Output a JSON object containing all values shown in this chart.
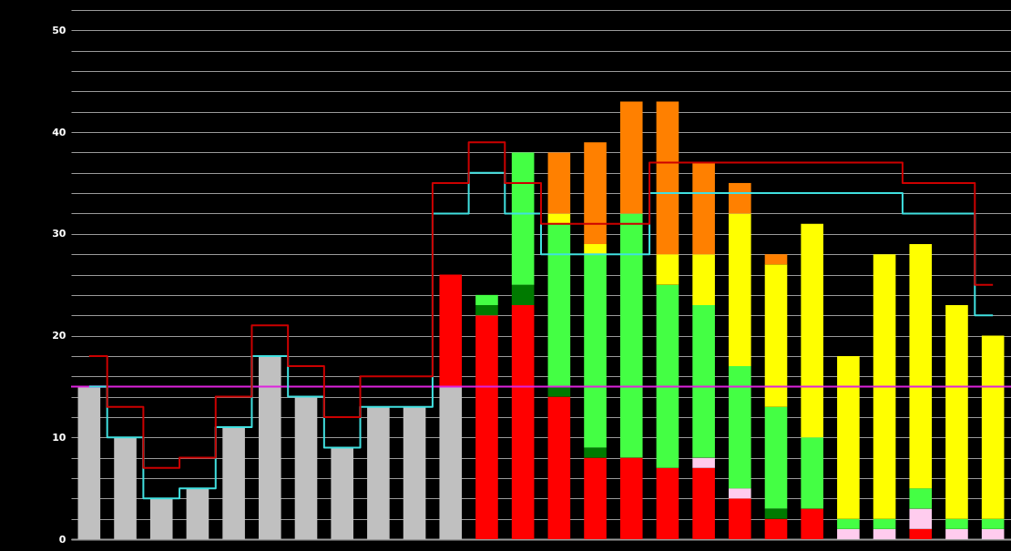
{
  "chart_data": {
    "type": "bar",
    "stacked": true,
    "categories": [
      null,
      null,
      null,
      null,
      null,
      null,
      null,
      null,
      null,
      null,
      null,
      null,
      null,
      null,
      null,
      null,
      null,
      null,
      null,
      null,
      null,
      null,
      null,
      null,
      null,
      null
    ],
    "series": [
      {
        "color": "#c0c0c0",
        "values": [
          15,
          10,
          4,
          5,
          11,
          18,
          14,
          9,
          13,
          13,
          15,
          null,
          null,
          null,
          null,
          null,
          null,
          null,
          null,
          null,
          null,
          null,
          null,
          null,
          null,
          null
        ]
      },
      {
        "color": "#ff0000",
        "values": [
          null,
          null,
          null,
          null,
          null,
          null,
          null,
          null,
          null,
          null,
          11,
          22,
          23,
          14,
          8,
          8,
          7,
          7,
          4,
          2,
          3,
          null,
          null,
          1,
          null,
          null
        ]
      },
      {
        "color": "#ffccee",
        "values": [
          null,
          null,
          null,
          null,
          null,
          null,
          null,
          null,
          null,
          null,
          null,
          null,
          null,
          null,
          null,
          null,
          null,
          1,
          1,
          null,
          null,
          1,
          1,
          2,
          1,
          1
        ]
      },
      {
        "color": "#007a00",
        "values": [
          null,
          null,
          null,
          null,
          null,
          null,
          null,
          null,
          null,
          null,
          null,
          1,
          2,
          1,
          1,
          null,
          null,
          null,
          null,
          1,
          null,
          null,
          null,
          null,
          null,
          null
        ]
      },
      {
        "color": "#44ff44",
        "values": [
          null,
          null,
          null,
          null,
          null,
          null,
          null,
          null,
          null,
          null,
          null,
          1,
          13,
          16,
          19,
          24,
          18,
          15,
          12,
          10,
          7,
          1,
          1,
          2,
          1,
          1
        ]
      },
      {
        "color": "#ffff00",
        "values": [
          null,
          null,
          null,
          null,
          null,
          null,
          null,
          null,
          null,
          null,
          null,
          null,
          null,
          1,
          1,
          null,
          3,
          5,
          15,
          14,
          21,
          16,
          26,
          24,
          21,
          18
        ]
      },
      {
        "color": "#ff8000",
        "values": [
          null,
          null,
          null,
          null,
          null,
          null,
          null,
          null,
          null,
          null,
          null,
          null,
          null,
          6,
          10,
          11,
          15,
          9,
          3,
          1,
          null,
          null,
          null,
          null,
          null,
          null
        ]
      },
      {
        "type": "step",
        "color": "#40e0e0",
        "values": [
          15,
          10,
          4,
          5,
          11,
          18,
          14,
          9,
          13,
          13,
          32,
          36,
          32,
          28,
          28,
          28,
          34,
          34,
          34,
          34,
          34,
          34,
          34,
          32,
          32,
          22
        ]
      },
      {
        "type": "step",
        "color": "#cc0000",
        "values": [
          18,
          13,
          7,
          8,
          14,
          21,
          17,
          12,
          16,
          16,
          35,
          39,
          35,
          31,
          31,
          31,
          37,
          37,
          37,
          37,
          37,
          37,
          37,
          35,
          35,
          25
        ]
      }
    ],
    "ylim": [
      0,
      52
    ],
    "yticks": [
      0,
      {
        "value": 2,
        "label": null
      },
      {
        "value": 4,
        "label": null
      },
      {
        "value": 6,
        "label": null
      },
      {
        "value": 8,
        "label": null
      },
      10,
      {
        "value": 12,
        "label": null
      },
      {
        "value": 14,
        "label": null
      },
      {
        "value": 16,
        "label": null
      },
      {
        "value": 18,
        "label": null
      },
      20,
      {
        "value": 22,
        "label": null
      },
      {
        "value": 24,
        "label": null
      },
      {
        "value": 26,
        "label": null
      },
      {
        "value": 28,
        "label": null
      },
      30,
      {
        "value": 32,
        "label": null
      },
      {
        "value": 34,
        "label": null
      },
      {
        "value": 36,
        "label": null
      },
      {
        "value": 38,
        "label": null
      },
      40,
      {
        "value": 42,
        "label": null
      },
      {
        "value": 44,
        "label": null
      },
      {
        "value": 46,
        "label": null
      },
      {
        "value": 48,
        "label": null
      },
      50,
      {
        "value": 52,
        "label": null
      }
    ],
    "ref_lines": [
      {
        "axis": "y",
        "value": 15,
        "color": "#dd22dd"
      }
    ],
    "grid": "y",
    "tick_labels": "y"
  }
}
